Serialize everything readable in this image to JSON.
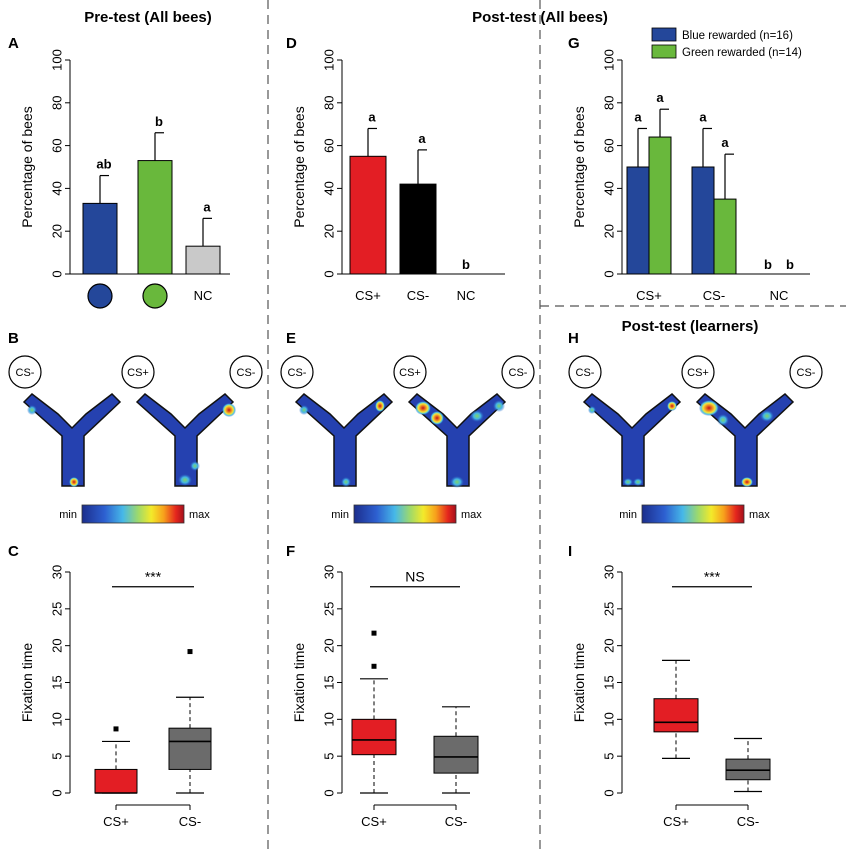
{
  "colors": {
    "blue": "#24479a",
    "green": "#69b83c",
    "grey_nc": "#c9c9c9",
    "red": "#e31e24",
    "black": "#000000",
    "box_grey": "#6b6b6b"
  },
  "sections": {
    "pretest": "Pre-test (All bees)",
    "posttest": "Post-test (All bees)",
    "learners": "Post-test (learners)"
  },
  "panel_labels": {
    "A": "A",
    "B": "B",
    "C": "C",
    "D": "D",
    "E": "E",
    "F": "F",
    "G": "G",
    "H": "H",
    "I": "I"
  },
  "heatmap": {
    "labels": {
      "left": "CS-",
      "middle": "CS+",
      "right": "CS-"
    },
    "scale_min": "min",
    "scale_max": "max"
  },
  "chart_data": [
    {
      "id": "A",
      "type": "bar",
      "ylabel": "Percentage of bees",
      "ylim": [
        0,
        100
      ],
      "yticks": [
        0,
        20,
        40,
        60,
        80,
        100
      ],
      "categories": [
        "blue-circle",
        "green-circle",
        "NC"
      ],
      "category_labels": [
        "",
        "",
        "NC"
      ],
      "values": [
        33,
        53,
        13
      ],
      "errors": [
        13,
        13,
        13
      ],
      "colors": [
        "#24479a",
        "#69b83c",
        "#c9c9c9"
      ],
      "significance": [
        "ab",
        "b",
        "a"
      ]
    },
    {
      "id": "D",
      "type": "bar",
      "ylabel": "Percentage of bees",
      "ylim": [
        0,
        100
      ],
      "yticks": [
        0,
        20,
        40,
        60,
        80,
        100
      ],
      "categories": [
        "CS+",
        "CS-",
        "NC"
      ],
      "values": [
        55,
        42,
        0
      ],
      "errors": [
        13,
        16,
        0
      ],
      "colors": [
        "#e31e24",
        "#000000",
        "#c9c9c9"
      ],
      "significance": [
        "a",
        "a",
        "b"
      ]
    },
    {
      "id": "G",
      "type": "bar",
      "ylabel": "Percentage of bees",
      "ylim": [
        0,
        100
      ],
      "yticks": [
        0,
        20,
        40,
        60,
        80,
        100
      ],
      "categories": [
        "CS+",
        "CS-",
        "NC"
      ],
      "series": [
        {
          "name": "Blue rewarded (n=16)",
          "color": "#24479a",
          "values": [
            50,
            50,
            0
          ],
          "errors": [
            18,
            18,
            0
          ],
          "significance": [
            "a",
            "a",
            "b"
          ]
        },
        {
          "name": "Green rewarded (n=14)",
          "color": "#69b83c",
          "values": [
            64,
            35,
            0
          ],
          "errors": [
            13,
            21,
            0
          ],
          "significance": [
            "a",
            "a",
            "b"
          ]
        }
      ],
      "legend_position": "top-right"
    },
    {
      "id": "C",
      "type": "box",
      "ylabel": "Fixation time",
      "ylim": [
        0,
        30
      ],
      "yticks": [
        0,
        5,
        10,
        15,
        20,
        25,
        30
      ],
      "categories": [
        "CS+",
        "CS-"
      ],
      "colors": [
        "#e31e24",
        "#6b6b6b"
      ],
      "boxes": [
        {
          "whisker_low": 0,
          "q1": 0,
          "median": 0,
          "q3": 3.2,
          "whisker_high": 7,
          "outliers": [
            8.7
          ]
        },
        {
          "whisker_low": 0,
          "q1": 3.2,
          "median": 7,
          "q3": 8.8,
          "whisker_high": 13,
          "outliers": [
            19.2
          ]
        }
      ],
      "significance": "***"
    },
    {
      "id": "F",
      "type": "box",
      "ylabel": "Fixation time",
      "ylim": [
        0,
        30
      ],
      "yticks": [
        0,
        5,
        10,
        15,
        20,
        25,
        30
      ],
      "categories": [
        "CS+",
        "CS-"
      ],
      "colors": [
        "#e31e24",
        "#6b6b6b"
      ],
      "boxes": [
        {
          "whisker_low": 0,
          "q1": 5.2,
          "median": 7.2,
          "q3": 10,
          "whisker_high": 15.5,
          "outliers": [
            17.2,
            21.7
          ]
        },
        {
          "whisker_low": 0,
          "q1": 2.7,
          "median": 4.9,
          "q3": 7.7,
          "whisker_high": 11.7,
          "outliers": []
        }
      ],
      "significance": "NS"
    },
    {
      "id": "I",
      "type": "box",
      "ylabel": "Fixation time",
      "ylim": [
        0,
        30
      ],
      "yticks": [
        0,
        5,
        10,
        15,
        20,
        25,
        30
      ],
      "categories": [
        "CS+",
        "CS-"
      ],
      "colors": [
        "#e31e24",
        "#6b6b6b"
      ],
      "boxes": [
        {
          "whisker_low": 4.7,
          "q1": 8.3,
          "median": 9.6,
          "q3": 12.8,
          "whisker_high": 18,
          "outliers": []
        },
        {
          "whisker_low": 0.2,
          "q1": 1.8,
          "median": 3.1,
          "q3": 4.6,
          "whisker_high": 7.4,
          "outliers": []
        }
      ],
      "significance": "***"
    }
  ]
}
